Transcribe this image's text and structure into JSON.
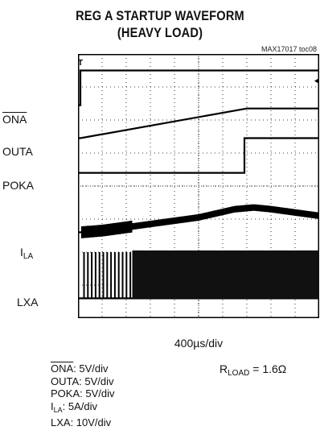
{
  "header": {
    "title_line1": "REG A STARTUP WAVEFORM",
    "title_line2": "(HEAVY LOAD)",
    "part_number": "MAX17017 toc08"
  },
  "channels": [
    {
      "name": "ONA",
      "overline": true
    },
    {
      "name": "OUTA"
    },
    {
      "name": "POKA"
    },
    {
      "name": "I",
      "subscript": "LA"
    },
    {
      "name": "LXA"
    }
  ],
  "timebase": "400µs/div",
  "scales": [
    {
      "prefix": "ONA",
      "suffix": ": 5V/div",
      "overline": true
    },
    {
      "prefix": "OUTA",
      "suffix": ": 5V/div"
    },
    {
      "prefix": "POKA",
      "suffix": ": 5V/div"
    },
    {
      "prefix": "I",
      "sub": "LA",
      "suffix": ": 5A/div"
    },
    {
      "prefix": "LXA",
      "suffix": ": 10V/div"
    }
  ],
  "load": {
    "prefix": "R",
    "sub": "LOAD",
    "suffix": " = 1.6Ω"
  },
  "trigger_marker": "T",
  "chart_data": {
    "type": "line",
    "x_divisions": 10,
    "y_divisions": 8,
    "x_range_div": [
      0,
      10
    ],
    "y_range_div": [
      0,
      8
    ],
    "grid": true,
    "series": [
      {
        "name": "ONA",
        "x": [
          0,
          0.1,
          0.1,
          10
        ],
        "y": [
          6.45,
          6.45,
          7.5,
          7.5
        ]
      },
      {
        "name": "OUTA",
        "x": [
          0,
          0.1,
          7.0,
          10
        ],
        "y": [
          5.45,
          5.45,
          6.35,
          6.35
        ]
      },
      {
        "name": "POKA",
        "x": [
          0,
          6.9,
          6.9,
          10
        ],
        "y": [
          4.4,
          4.4,
          5.45,
          5.45
        ]
      },
      {
        "name": "ILA",
        "x": [
          0,
          0.15,
          1.0,
          3.0,
          5.0,
          6.5,
          7.3,
          8.0,
          10
        ],
        "y": [
          2.6,
          2.6,
          2.65,
          2.85,
          3.05,
          3.3,
          3.35,
          3.3,
          3.1
        ]
      },
      {
        "name": "LXA",
        "x": [
          0,
          10
        ],
        "y": [
          0.6,
          0.6
        ]
      }
    ],
    "switching": {
      "burst_start_div": 0.15,
      "burst_end_div": 2.25,
      "continuous_end_div": 10
    }
  }
}
